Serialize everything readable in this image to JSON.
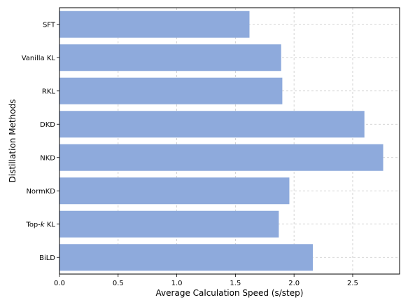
{
  "chart_data": {
    "type": "bar",
    "orientation": "horizontal",
    "categories": [
      "SFT",
      "Vanilla KL",
      "RKL",
      "DKD",
      "NKD",
      "NormKD",
      "Top-k KL",
      "BiLD"
    ],
    "category_display": {
      "Top-k KL": {
        "prefix": "Top-",
        "italic": "k",
        "suffix": " KL"
      }
    },
    "values": [
      1.62,
      1.89,
      1.9,
      2.6,
      2.76,
      1.96,
      1.87,
      2.16
    ],
    "xlabel": "Average Calculation Speed (s/step)",
    "ylabel": "Distillation Methods",
    "xlim": [
      0,
      2.9
    ],
    "xticks": [
      0.0,
      0.5,
      1.0,
      1.5,
      2.0,
      2.5
    ],
    "xtick_labels": [
      "0.0",
      "0.5",
      "1.0",
      "1.5",
      "2.0",
      "2.5"
    ],
    "grid": true,
    "bar_color": "#8eaadc"
  }
}
